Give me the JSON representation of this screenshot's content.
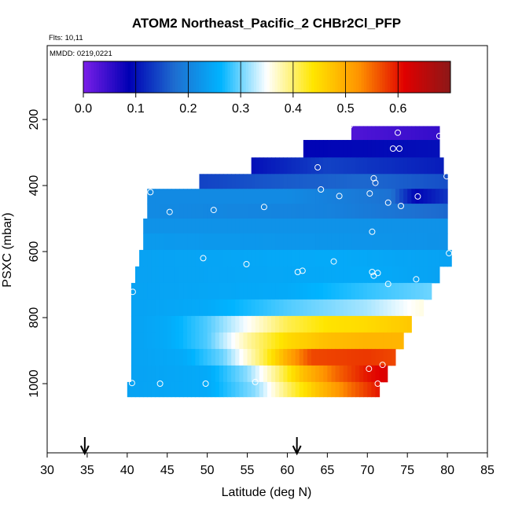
{
  "chart_data": {
    "type": "heatmap",
    "title": "ATOM2 Northeast_Pacific_2 CHBr2Cl_PFP",
    "flights_label": "Flts: 10,11",
    "dates_label": "MMDD: 0219,0221",
    "xlabel": "Latitude (deg N)",
    "ylabel": "PSXC (mbar)",
    "xlim": [
      30,
      85
    ],
    "ylim": [
      1000,
      0
    ],
    "x_ticks": [
      30,
      35,
      40,
      45,
      50,
      55,
      60,
      65,
      70,
      75,
      80,
      85
    ],
    "y_ticks": [
      200,
      400,
      600,
      800,
      1000
    ],
    "colorbar": {
      "range": [
        0.0,
        0.7
      ],
      "ticks": [
        0.0,
        0.1,
        0.2,
        0.3,
        0.4,
        0.5,
        0.6
      ],
      "tick_labels": [
        "0.0",
        "0.1",
        "0.2",
        "0.3",
        "0.4",
        "0.5",
        "0.6"
      ]
    },
    "arrows_latitude": [
      34.7,
      61.2
    ],
    "colors": {
      "scale": [
        "#7a1fe8",
        "#0000b4",
        "#1e6ed0",
        "#00b4ff",
        "#ffffff",
        "#ffe600",
        "#ff9400",
        "#e00000",
        "#8c1818"
      ]
    },
    "bands": [
      {
        "p_top": 220,
        "p_bot": 262,
        "lat_start": 68,
        "lat_end": 79,
        "segments": [
          [
            68,
            0.03
          ],
          [
            79,
            0.05
          ]
        ]
      },
      {
        "p_top": 262,
        "p_bot": 315,
        "lat_start": 62,
        "lat_end": 79,
        "segments": [
          [
            62,
            0.09
          ],
          [
            79,
            0.1
          ]
        ]
      },
      {
        "p_top": 315,
        "p_bot": 365,
        "lat_start": 55.5,
        "lat_end": 79.5,
        "segments": [
          [
            55.5,
            0.1
          ],
          [
            65,
            0.14
          ],
          [
            79.5,
            0.11
          ]
        ]
      },
      {
        "p_top": 365,
        "p_bot": 410,
        "lat_start": 49,
        "lat_end": 80,
        "segments": [
          [
            49,
            0.14
          ],
          [
            60,
            0.16
          ],
          [
            70,
            0.17
          ],
          [
            80,
            0.15
          ]
        ]
      },
      {
        "p_top": 410,
        "p_bot": 455,
        "lat_start": 42.5,
        "lat_end": 80,
        "segments": [
          [
            42.5,
            0.21
          ],
          [
            60,
            0.21
          ],
          [
            73,
            0.18
          ],
          [
            76,
            0.09
          ],
          [
            80,
            0.13
          ]
        ]
      },
      {
        "p_top": 455,
        "p_bot": 500,
        "lat_start": 42.5,
        "lat_end": 80,
        "segments": [
          [
            42.5,
            0.21
          ],
          [
            65,
            0.2
          ],
          [
            75,
            0.18
          ],
          [
            80,
            0.17
          ]
        ]
      },
      {
        "p_top": 500,
        "p_bot": 545,
        "lat_start": 42,
        "lat_end": 80,
        "segments": [
          [
            42,
            0.22
          ],
          [
            80,
            0.22
          ]
        ]
      },
      {
        "p_top": 545,
        "p_bot": 595,
        "lat_start": 42,
        "lat_end": 80,
        "segments": [
          [
            42,
            0.23
          ],
          [
            80,
            0.22
          ]
        ]
      },
      {
        "p_top": 595,
        "p_bot": 645,
        "lat_start": 41.5,
        "lat_end": 80.5,
        "segments": [
          [
            41.5,
            0.24
          ],
          [
            65,
            0.25
          ],
          [
            80.5,
            0.24
          ]
        ]
      },
      {
        "p_top": 645,
        "p_bot": 695,
        "lat_start": 41,
        "lat_end": 79,
        "segments": [
          [
            41,
            0.24
          ],
          [
            70,
            0.25
          ],
          [
            79,
            0.24
          ]
        ]
      },
      {
        "p_top": 695,
        "p_bot": 745,
        "lat_start": 40.5,
        "lat_end": 78,
        "segments": [
          [
            40.5,
            0.24
          ],
          [
            60,
            0.25
          ],
          [
            70,
            0.28
          ],
          [
            78,
            0.3
          ]
        ]
      },
      {
        "p_top": 745,
        "p_bot": 795,
        "lat_start": 40.5,
        "lat_end": 77,
        "segments": [
          [
            40.5,
            0.24
          ],
          [
            50,
            0.25
          ],
          [
            60,
            0.29
          ],
          [
            70,
            0.32
          ],
          [
            77,
            0.36
          ]
        ]
      },
      {
        "p_top": 795,
        "p_bot": 845,
        "lat_start": 40.5,
        "lat_end": 75.5,
        "segments": [
          [
            40.5,
            0.24
          ],
          [
            45,
            0.25
          ],
          [
            50,
            0.29
          ],
          [
            55,
            0.35
          ],
          [
            60,
            0.41
          ],
          [
            65,
            0.44
          ],
          [
            70,
            0.45
          ],
          [
            75.5,
            0.47
          ]
        ]
      },
      {
        "p_top": 845,
        "p_bot": 895,
        "lat_start": 40.5,
        "lat_end": 74.5,
        "segments": [
          [
            40.5,
            0.24
          ],
          [
            45,
            0.25
          ],
          [
            50,
            0.29
          ],
          [
            55,
            0.38
          ],
          [
            60,
            0.45
          ],
          [
            65,
            0.48
          ],
          [
            70,
            0.49
          ],
          [
            74.5,
            0.49
          ]
        ]
      },
      {
        "p_top": 895,
        "p_bot": 945,
        "lat_start": 40.5,
        "lat_end": 73.5,
        "segments": [
          [
            40.5,
            0.24
          ],
          [
            47,
            0.25
          ],
          [
            52,
            0.3
          ],
          [
            57,
            0.41
          ],
          [
            60,
            0.5
          ],
          [
            63,
            0.57
          ],
          [
            70,
            0.58
          ],
          [
            73.5,
            0.57
          ]
        ]
      },
      {
        "p_top": 945,
        "p_bot": 995,
        "lat_start": 40.5,
        "lat_end": 72.5,
        "segments": [
          [
            40.5,
            0.24
          ],
          [
            50,
            0.25
          ],
          [
            55,
            0.31
          ],
          [
            59,
            0.4
          ],
          [
            62,
            0.48
          ],
          [
            66,
            0.55
          ],
          [
            70,
            0.6
          ],
          [
            72.5,
            0.62
          ]
        ]
      },
      {
        "p_top": 995,
        "p_bot": 1040,
        "lat_start": 40,
        "lat_end": 71.5,
        "segments": [
          [
            40,
            0.24
          ],
          [
            50,
            0.25
          ],
          [
            56,
            0.31
          ],
          [
            60,
            0.4
          ],
          [
            64,
            0.48
          ],
          [
            68,
            0.55
          ],
          [
            71.5,
            0.6
          ]
        ]
      }
    ],
    "points": [
      [
        67.8,
        218
      ],
      [
        73.8,
        240
      ],
      [
        79,
        250
      ],
      [
        73.2,
        288
      ],
      [
        74,
        288
      ],
      [
        63.8,
        345
      ],
      [
        70.8,
        378
      ],
      [
        71,
        392
      ],
      [
        79.9,
        372
      ],
      [
        42.9,
        420
      ],
      [
        64.2,
        412
      ],
      [
        66.5,
        432
      ],
      [
        70.3,
        424
      ],
      [
        76.3,
        433
      ],
      [
        72.6,
        452
      ],
      [
        74.2,
        462
      ],
      [
        45.3,
        480
      ],
      [
        50.8,
        474
      ],
      [
        57.1,
        465
      ],
      [
        70.6,
        540
      ],
      [
        49.5,
        620
      ],
      [
        54.9,
        638
      ],
      [
        65.8,
        630
      ],
      [
        80.2,
        605
      ],
      [
        61.9,
        658
      ],
      [
        61.3,
        662
      ],
      [
        70.6,
        662
      ],
      [
        70.8,
        673
      ],
      [
        71.3,
        665
      ],
      [
        72.6,
        698
      ],
      [
        76.1,
        684
      ],
      [
        40.7,
        722
      ],
      [
        70.2,
        955
      ],
      [
        71.9,
        943
      ],
      [
        40.6,
        998
      ],
      [
        44.1,
        1000
      ],
      [
        49.8,
        1000
      ],
      [
        56,
        995
      ],
      [
        71.3,
        1000
      ]
    ]
  }
}
